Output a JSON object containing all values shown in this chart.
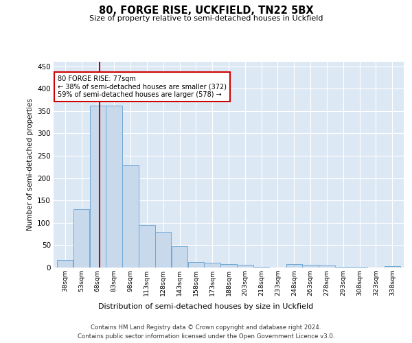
{
  "title": "80, FORGE RISE, UCKFIELD, TN22 5BX",
  "subtitle": "Size of property relative to semi-detached houses in Uckfield",
  "xlabel": "Distribution of semi-detached houses by size in Uckfield",
  "ylabel": "Number of semi-detached properties",
  "bin_labels": [
    "38sqm",
    "53sqm",
    "68sqm",
    "83sqm",
    "98sqm",
    "113sqm",
    "128sqm",
    "143sqm",
    "158sqm",
    "173sqm",
    "188sqm",
    "203sqm",
    "218sqm",
    "233sqm",
    "248sqm",
    "263sqm",
    "278sqm",
    "293sqm",
    "308sqm",
    "323sqm",
    "338sqm"
  ],
  "bin_edges": [
    38,
    53,
    68,
    83,
    98,
    113,
    128,
    143,
    158,
    173,
    188,
    203,
    218,
    233,
    248,
    263,
    278,
    293,
    308,
    323,
    338,
    353
  ],
  "values": [
    17,
    130,
    362,
    362,
    228,
    95,
    80,
    47,
    12,
    10,
    7,
    6,
    2,
    0,
    7,
    6,
    5,
    2,
    1,
    0,
    3
  ],
  "bar_color": "#c8d9ec",
  "bar_edge_color": "#6fa8d6",
  "property_size": 77,
  "property_label": "80 FORGE RISE: 77sqm",
  "pct_smaller": 38,
  "pct_larger": 59,
  "n_smaller": 372,
  "n_larger": 578,
  "vline_color": "#cc0000",
  "annotation_box_color": "#cc0000",
  "ylim": [
    0,
    460
  ],
  "yticks": [
    0,
    50,
    100,
    150,
    200,
    250,
    300,
    350,
    400,
    450
  ],
  "bg_color": "#dde8f5",
  "grid_color": "#ffffff",
  "fig_bg_color": "#ffffff",
  "footer_line1": "Contains HM Land Registry data © Crown copyright and database right 2024.",
  "footer_line2": "Contains public sector information licensed under the Open Government Licence v3.0."
}
